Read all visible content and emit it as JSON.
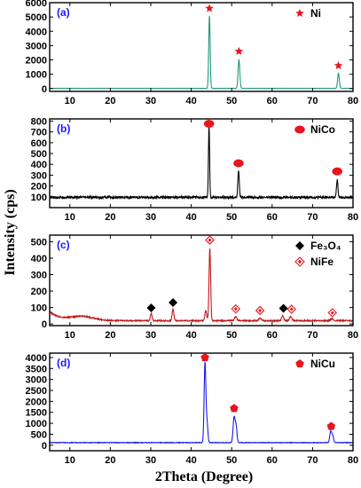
{
  "x_axis_title": "2Theta (Degree)",
  "y_axis_title": "Intensity (cps)",
  "chart_data": [
    {
      "panel_label": "(a)",
      "type": "line",
      "line_color": "#1f9a7a",
      "label_color": "#1a1aff",
      "xlim": [
        5,
        80
      ],
      "ylim": [
        -200,
        6000
      ],
      "x_ticks": [
        10,
        20,
        30,
        40,
        50,
        60,
        70,
        80
      ],
      "y_ticks": [
        0,
        1000,
        2000,
        3000,
        4000,
        5000,
        6000
      ],
      "baseline": 15,
      "peaks": [
        {
          "x": 44.5,
          "height": 5100,
          "width": 0.25
        },
        {
          "x": 51.8,
          "height": 2000,
          "width": 0.3
        },
        {
          "x": 76.4,
          "height": 1050,
          "width": 0.3
        }
      ],
      "markers": [
        {
          "x": 44.5,
          "y": 5600,
          "shape": "star",
          "color": "#e8141e"
        },
        {
          "x": 51.8,
          "y": 2600,
          "shape": "star",
          "color": "#e8141e"
        },
        {
          "x": 76.4,
          "y": 1600,
          "shape": "star",
          "color": "#e8141e"
        }
      ],
      "legend": [
        {
          "label": "Ni",
          "shape": "star",
          "color": "#e8141e"
        }
      ]
    },
    {
      "panel_label": "(b)",
      "type": "line",
      "line_color": "#000000",
      "label_color": "#1a1aff",
      "xlim": [
        5,
        80
      ],
      "ylim": [
        0,
        820
      ],
      "x_ticks": [
        10,
        20,
        30,
        40,
        50,
        60,
        70,
        80
      ],
      "y_ticks": [
        100,
        200,
        300,
        400,
        500,
        600,
        700,
        800
      ],
      "baseline": 95,
      "peaks": [
        {
          "x": 44.4,
          "height": 665,
          "width": 0.2
        },
        {
          "x": 51.7,
          "height": 245,
          "width": 0.25
        },
        {
          "x": 76.1,
          "height": 165,
          "width": 0.25
        }
      ],
      "markers": [
        {
          "x": 44.4,
          "y": 775,
          "shape": "circle",
          "color": "#e8141e"
        },
        {
          "x": 51.7,
          "y": 410,
          "shape": "circle",
          "color": "#e8141e"
        },
        {
          "x": 76.1,
          "y": 335,
          "shape": "circle",
          "color": "#e8141e"
        }
      ],
      "legend": [
        {
          "label": "NiCo",
          "shape": "circle",
          "color": "#e8141e"
        }
      ]
    },
    {
      "panel_label": "(c)",
      "type": "line",
      "line_color": "#c01818",
      "label_color": "#1a1aff",
      "xlim": [
        5,
        80
      ],
      "ylim": [
        -10,
        540
      ],
      "x_ticks": [
        10,
        20,
        30,
        40,
        50,
        60,
        70,
        80
      ],
      "y_ticks": [
        0,
        100,
        200,
        300,
        400,
        500
      ],
      "baseline": 20,
      "hump": {
        "start_extra": 55,
        "center": 13,
        "height": 25,
        "width": 4
      },
      "peaks": [
        {
          "x": 30.1,
          "height": 45,
          "width": 0.3
        },
        {
          "x": 35.5,
          "height": 70,
          "width": 0.3
        },
        {
          "x": 43.6,
          "height": 60,
          "width": 0.3
        },
        {
          "x": 44.6,
          "height": 440,
          "width": 0.28
        },
        {
          "x": 51.0,
          "height": 25,
          "width": 0.4
        },
        {
          "x": 57.0,
          "height": 15,
          "width": 0.4
        },
        {
          "x": 62.6,
          "height": 30,
          "width": 0.35
        },
        {
          "x": 64.6,
          "height": 25,
          "width": 0.4
        },
        {
          "x": 74.8,
          "height": 12,
          "width": 0.5
        }
      ],
      "markers": [
        {
          "x": 30.1,
          "y": 98,
          "shape": "diamond",
          "color": "#000000"
        },
        {
          "x": 35.5,
          "y": 130,
          "shape": "diamond",
          "color": "#000000"
        },
        {
          "x": 62.8,
          "y": 95,
          "shape": "diamond",
          "color": "#000000"
        },
        {
          "x": 44.6,
          "y": 510,
          "shape": "open-diamond",
          "color": "#e8141e"
        },
        {
          "x": 51.0,
          "y": 92,
          "shape": "open-diamond",
          "color": "#e8141e"
        },
        {
          "x": 57.0,
          "y": 82,
          "shape": "open-diamond",
          "color": "#e8141e"
        },
        {
          "x": 64.8,
          "y": 90,
          "shape": "open-diamond",
          "color": "#e8141e"
        },
        {
          "x": 74.9,
          "y": 68,
          "shape": "open-diamond",
          "color": "#e8141e"
        }
      ],
      "legend": [
        {
          "label": "Fe₃O₄",
          "shape": "diamond",
          "color": "#000000"
        },
        {
          "label": "NiFe",
          "shape": "open-diamond",
          "color": "#e8141e"
        }
      ]
    },
    {
      "panel_label": "(d)",
      "type": "line",
      "line_color": "#1a1aee",
      "label_color": "#1a1aff",
      "xlim": [
        5,
        80
      ],
      "ylim": [
        -250,
        4200
      ],
      "x_ticks": [
        10,
        20,
        30,
        40,
        50,
        60,
        70,
        80
      ],
      "y_ticks": [
        0,
        500,
        1000,
        1500,
        2000,
        2500,
        3000,
        3500,
        4000
      ],
      "baseline": 120,
      "peaks": [
        {
          "x": 43.4,
          "height": 3650,
          "width": 0.3
        },
        {
          "x": 43.9,
          "height": 900,
          "width": 0.3
        },
        {
          "x": 50.6,
          "height": 1150,
          "width": 0.35
        },
        {
          "x": 51.1,
          "height": 700,
          "width": 0.3
        },
        {
          "x": 74.5,
          "height": 520,
          "width": 0.35
        },
        {
          "x": 75.0,
          "height": 280,
          "width": 0.3
        }
      ],
      "markers": [
        {
          "x": 43.4,
          "y": 4000,
          "shape": "pentagon",
          "color": "#e8141e"
        },
        {
          "x": 50.6,
          "y": 1680,
          "shape": "pentagon",
          "color": "#e8141e"
        },
        {
          "x": 74.6,
          "y": 860,
          "shape": "pentagon",
          "color": "#e8141e"
        }
      ],
      "legend": [
        {
          "label": "NiCu",
          "shape": "pentagon",
          "color": "#e8141e"
        }
      ]
    }
  ]
}
